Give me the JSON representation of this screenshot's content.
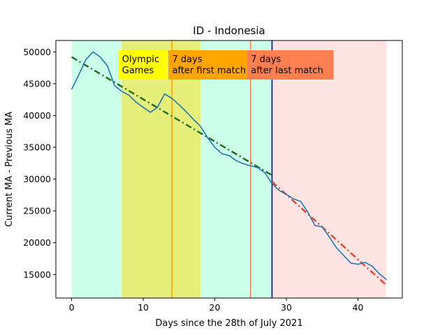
{
  "chart_data": {
    "type": "line",
    "title": "ID - Indonesia",
    "xlabel": "Days since the 28th of July 2021",
    "ylabel": "Current MA - Previous MA",
    "xlim": [
      -2.2,
      46.2
    ],
    "ylim": [
      11300,
      51800
    ],
    "xticks": [
      0,
      10,
      20,
      30,
      40
    ],
    "yticks": [
      15000,
      20000,
      25000,
      30000,
      35000,
      40000,
      45000,
      50000
    ],
    "grid": false,
    "regions": [
      {
        "x0": 0,
        "x1": 7,
        "color": "#ccffe9"
      },
      {
        "x0": 7,
        "x1": 18,
        "color": "#e6ef7a"
      },
      {
        "x0": 18,
        "x1": 28,
        "color": "#ccffe9"
      },
      {
        "x0": 28,
        "x1": 44,
        "color": "#ffe4e4"
      }
    ],
    "vlines": [
      {
        "x": 14,
        "color": "#ffa500"
      },
      {
        "x": 25,
        "color": "#ff7f50"
      },
      {
        "x": 28,
        "color": "#0000cc"
      }
    ],
    "annotations": [
      {
        "lines": [
          "Olympic",
          "Games"
        ],
        "x": 7,
        "bg": "#ffff00",
        "box_x1": 13.3
      },
      {
        "lines": [
          "7 days",
          "after first match"
        ],
        "x": 14,
        "bg": "#ffa500",
        "box_x1": 24.9
      },
      {
        "lines": [
          "7 days",
          "after last match"
        ],
        "x": 25,
        "bg": "#ff7f50",
        "box_x1": 36.6
      }
    ],
    "series": [
      {
        "color": "#1f77b4",
        "x": [
          0,
          1,
          2,
          3,
          4,
          5,
          6,
          7,
          8,
          9,
          10,
          11,
          12,
          13,
          14,
          15,
          16,
          17,
          18,
          19,
          20,
          21,
          22,
          23,
          24,
          25,
          26,
          27,
          28,
          29,
          30,
          31,
          32,
          33,
          34,
          35,
          36,
          37,
          38,
          39,
          40,
          41,
          42,
          43,
          44
        ],
        "y": [
          44100,
          46400,
          48800,
          50000,
          49200,
          47800,
          44700,
          43800,
          43200,
          42100,
          41300,
          40500,
          41300,
          43400,
          42700,
          41700,
          40600,
          39400,
          38300,
          36500,
          35000,
          34000,
          33700,
          32900,
          32400,
          32100,
          31800,
          31000,
          29300,
          28200,
          27600,
          26900,
          26500,
          24800,
          22700,
          22500,
          20900,
          19200,
          18000,
          16800,
          16600,
          16900,
          16300,
          15100,
          14200
        ]
      }
    ],
    "trend_lines": [
      {
        "color": "#1a6b1a",
        "x": [
          0,
          28
        ],
        "y": [
          49200,
          30600
        ]
      },
      {
        "color": "#e8452c",
        "x": [
          28,
          44
        ],
        "y": [
          29600,
          13300
        ]
      }
    ]
  }
}
